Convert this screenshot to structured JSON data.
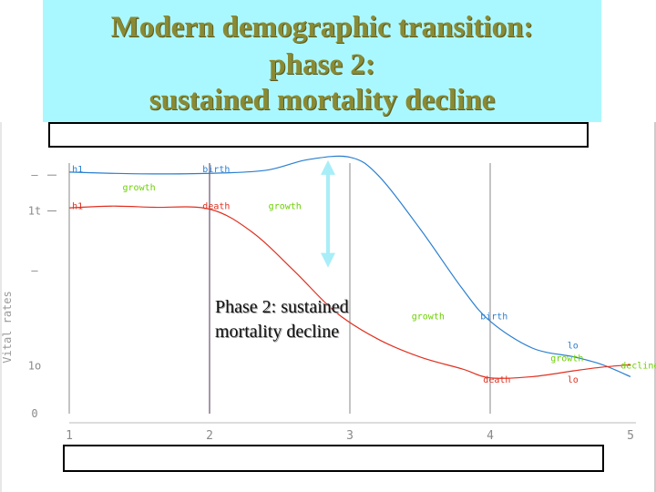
{
  "title": {
    "line1": "Modern demographic transition:",
    "line2": "phase 2:",
    "line3": "sustained mortality decline"
  },
  "annotation": {
    "line1": "Phase 2:  sustained",
    "line2": "mortality decline"
  },
  "chart_data": {
    "type": "line",
    "y_axis_label": "Vital rates",
    "y_tick_labels": [
      {
        "label": "—",
        "value": 40
      },
      {
        "label": "1t",
        "value": 34
      },
      {
        "label": "—",
        "value": 24
      },
      {
        "label": "1o",
        "value": 8
      },
      {
        "label": "0",
        "value": 0
      }
    ],
    "x_tick_labels": [
      "1",
      "2",
      "3",
      "4",
      "5"
    ],
    "x_range": [
      1,
      5
    ],
    "y_range": [
      0,
      44
    ],
    "grid": "vertical lines at phase boundaries",
    "series": [
      {
        "name": "birth",
        "color": "#2a7fd0",
        "x": [
          1.0,
          1.3,
          1.6,
          2.0,
          2.4,
          2.7,
          3.0,
          3.2,
          3.5,
          3.8,
          4.0,
          4.3,
          4.6,
          4.8,
          5.0
        ],
        "y": [
          40.5,
          40.3,
          40.2,
          40.3,
          40.8,
          42.6,
          43.0,
          40.0,
          31.0,
          21.0,
          15.5,
          11.0,
          9.5,
          8.2,
          6.2
        ]
      },
      {
        "name": "death",
        "color": "#e03020",
        "x": [
          1.0,
          1.3,
          1.6,
          2.0,
          2.3,
          2.6,
          2.9,
          3.2,
          3.5,
          3.8,
          4.0,
          4.3,
          4.6,
          4.8,
          5.0
        ],
        "y": [
          34.5,
          34.8,
          34.6,
          34.3,
          30.5,
          24.0,
          17.0,
          12.5,
          9.5,
          7.5,
          6.0,
          6.2,
          7.2,
          7.8,
          8.2
        ]
      }
    ],
    "series_labels": [
      {
        "text": "h1",
        "color": "#2a7fd0",
        "x": 1.02,
        "y": 40.5
      },
      {
        "text": "h1",
        "color": "#e03020",
        "x": 1.02,
        "y": 34.3
      },
      {
        "text": "growth",
        "color": "#6cd000",
        "x": 1.38,
        "y": 37.4
      },
      {
        "text": "birth",
        "color": "#2a7fd0",
        "x": 1.95,
        "y": 40.5
      },
      {
        "text": "death",
        "color": "#e03020",
        "x": 1.95,
        "y": 34.3
      },
      {
        "text": "growth",
        "color": "#6cd000",
        "x": 2.42,
        "y": 34.3
      },
      {
        "text": "growth",
        "color": "#6cd000",
        "x": 3.44,
        "y": 15.8
      },
      {
        "text": "birth",
        "color": "#2a7fd0",
        "x": 3.93,
        "y": 15.8
      },
      {
        "text": "lo",
        "color": "#2a7fd0",
        "x": 4.55,
        "y": 10.9
      },
      {
        "text": "growth",
        "color": "#6cd000",
        "x": 4.43,
        "y": 8.8
      },
      {
        "text": "decline",
        "color": "#6cd000",
        "x": 4.93,
        "y": 7.6
      },
      {
        "text": "death",
        "color": "#e03020",
        "x": 3.95,
        "y": 5.2
      },
      {
        "text": "lo",
        "color": "#e03020",
        "x": 4.55,
        "y": 5.2
      }
    ],
    "arrow": {
      "x": 3.0,
      "y_top": 42.5,
      "y_bottom": 24.5,
      "color": "#a8eef8"
    }
  }
}
